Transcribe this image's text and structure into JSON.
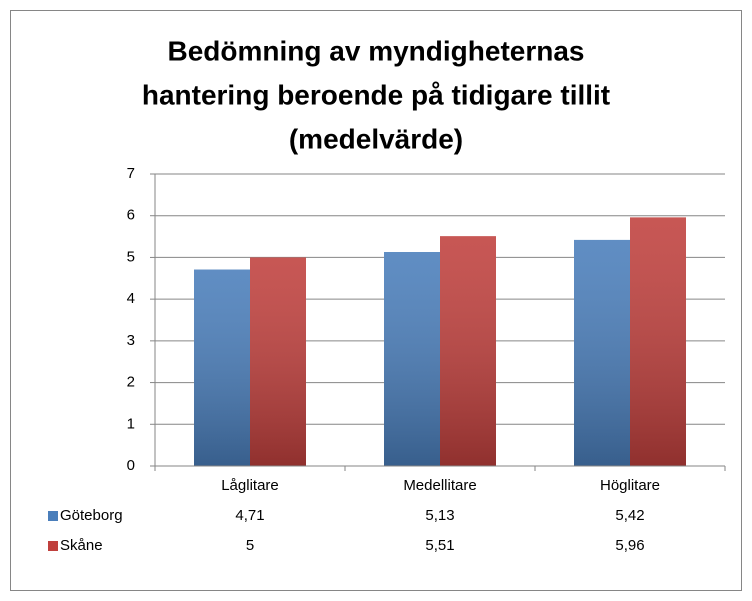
{
  "chart_data": {
    "type": "bar",
    "title": [
      "Bedömning av myndigheternas",
      "hantering beroende på tidigare tillit",
      "(medelvärde)"
    ],
    "categories": [
      "Låglitare",
      "Medellitare",
      "Höglitare"
    ],
    "series": [
      {
        "name": "Göteborg",
        "color": "#4a7ebb",
        "values": [
          4.71,
          5.13,
          5.42
        ],
        "value_labels": [
          "4,71",
          "5,13",
          "5,42"
        ]
      },
      {
        "name": "Skåne",
        "color": "#c0403d",
        "values": [
          5,
          5.51,
          5.96
        ],
        "value_labels": [
          "5",
          "5,51",
          "5,96"
        ]
      }
    ],
    "ylim": [
      0,
      7
    ],
    "yticks": [
      0,
      1,
      2,
      3,
      4,
      5,
      6,
      7
    ],
    "grid": true,
    "legend": "bottom"
  }
}
